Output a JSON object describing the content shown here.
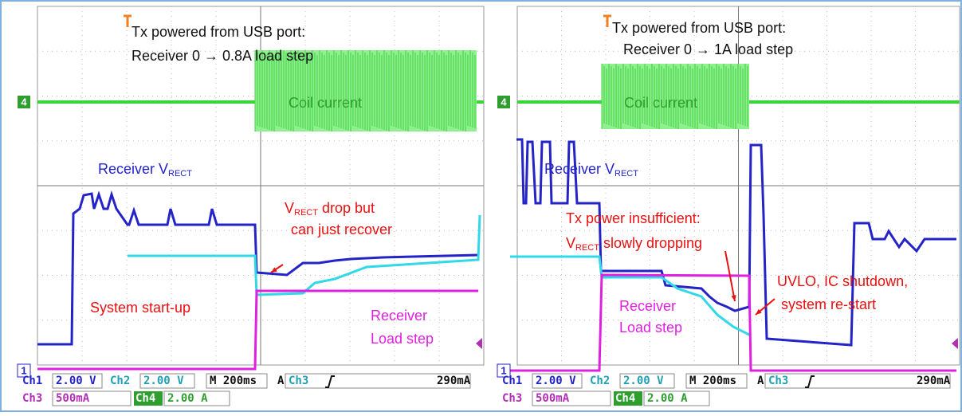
{
  "panels": [
    {
      "annotations": [
        {
          "text": "Tx powered from USB port:",
          "color": "#111111"
        },
        {
          "text": "Receiver  0 → 0.8A load step",
          "color": "#111111"
        },
        {
          "text": "Coil current",
          "color": "#2e9e2e"
        },
        {
          "text": "Receiver V",
          "sub": "RECT",
          "color": "#2323c8"
        },
        {
          "text": "V",
          "sub": "RECT",
          "after": " drop but",
          "color": "#e81010"
        },
        {
          "text": "can just recover",
          "color": "#e81010"
        },
        {
          "text": "System start-up",
          "color": "#e81010"
        },
        {
          "text": "Receiver",
          "color": "#e020e0"
        },
        {
          "text": "Load step",
          "color": "#e020e0"
        }
      ],
      "markers": [
        "4",
        "1"
      ],
      "status": {
        "ch1_label": "Ch1",
        "ch1_scale": "2.00 V",
        "ch2_label": "Ch2",
        "ch2_scale": "2.00 V",
        "timebase": "M 200ms",
        "trigger_mode": "A",
        "trigger_source": "Ch3",
        "trigger_level": "290mA",
        "ch3_label": "Ch3",
        "ch3_scale": "500mA",
        "ch4_label": "Ch4",
        "ch4_scale": "2.00 A"
      }
    },
    {
      "annotations": [
        {
          "text": "Tx powered from USB port:",
          "color": "#111111"
        },
        {
          "text": "Receiver  0 → 1A load step",
          "color": "#111111"
        },
        {
          "text": "Coil current",
          "color": "#2e9e2e"
        },
        {
          "text": "Receiver V",
          "sub": "RECT",
          "color": "#2323c8"
        },
        {
          "text": "Tx power insufficient:",
          "color": "#e81010"
        },
        {
          "text": "V",
          "sub": "RECT",
          "after": " slowly dropping",
          "color": "#e81010"
        },
        {
          "text": "UVLO, IC shutdown,",
          "color": "#e81010"
        },
        {
          "text": "system re-start",
          "color": "#e81010"
        },
        {
          "text": "Receiver",
          "color": "#e020e0"
        },
        {
          "text": "Load step",
          "color": "#e020e0"
        }
      ],
      "markers": [
        "4",
        "1"
      ],
      "status": {
        "ch1_label": "Ch1",
        "ch1_scale": "2.00 V",
        "ch2_label": "Ch2",
        "ch2_scale": "2.00 V",
        "timebase": "M 200ms",
        "trigger_mode": "A",
        "trigger_source": "Ch3",
        "trigger_level": "290mA",
        "ch3_label": "Ch3",
        "ch3_scale": "500mA",
        "ch4_label": "Ch4",
        "ch4_scale": "2.00 A"
      }
    }
  ]
}
